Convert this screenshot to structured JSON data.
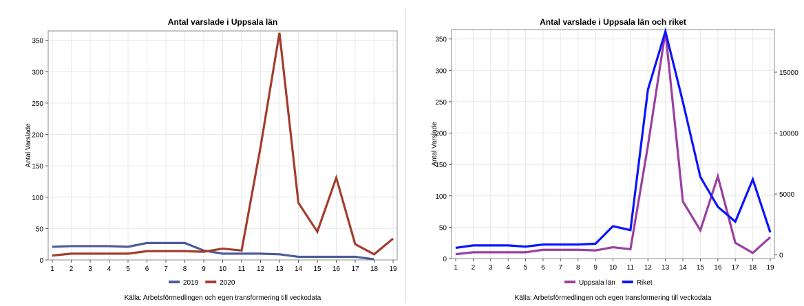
{
  "chart_data": [
    {
      "type": "line",
      "title": "Antal varslade i Uppsala län",
      "ylabel": "Antal Varslade",
      "xlabel": "",
      "x": [
        1,
        2,
        3,
        4,
        5,
        6,
        7,
        8,
        9,
        10,
        11,
        12,
        13,
        14,
        15,
        16,
        17,
        18,
        19
      ],
      "ylim": [
        0,
        365
      ],
      "yticks": [
        0,
        50,
        100,
        150,
        200,
        250,
        300,
        350
      ],
      "grid": true,
      "legend_position": "bottom",
      "series": [
        {
          "name": "2019",
          "color": "#4a5c9a",
          "values": [
            21,
            22,
            22,
            22,
            21,
            27,
            27,
            27,
            15,
            10,
            10,
            10,
            9,
            5,
            5,
            5,
            5,
            1,
            null
          ]
        },
        {
          "name": "2020",
          "color": "#a33d2e",
          "values": [
            7,
            10,
            10,
            10,
            10,
            14,
            14,
            14,
            13,
            18,
            15,
            180,
            362,
            91,
            45,
            131,
            25,
            9,
            34
          ]
        }
      ],
      "source": "Källa: Arbetsförmedlingen och egen transformering till veckodata"
    },
    {
      "type": "line",
      "title": "Antal varslade i Uppsala län och riket",
      "ylabel": "Antal Varslade",
      "xlabel": "",
      "x": [
        1,
        2,
        3,
        4,
        5,
        6,
        7,
        8,
        9,
        10,
        11,
        12,
        13,
        14,
        15,
        16,
        17,
        18,
        19
      ],
      "ylim": [
        0,
        365
      ],
      "yticks": [
        0,
        50,
        100,
        150,
        200,
        250,
        300,
        350
      ],
      "y2lim": [
        -300,
        18500
      ],
      "y2ticks": [
        0,
        5000,
        10000,
        15000
      ],
      "grid": true,
      "legend_position": "bottom",
      "series": [
        {
          "name": "Uppsala län",
          "color": "#9b3fa0",
          "axis": "left",
          "values": [
            7,
            10,
            10,
            10,
            10,
            14,
            14,
            14,
            13,
            18,
            15,
            180,
            362,
            91,
            45,
            131,
            25,
            9,
            34
          ]
        },
        {
          "name": "Riket",
          "color": "#0a14ff",
          "axis": "right",
          "values": [
            580,
            780,
            780,
            780,
            680,
            850,
            850,
            850,
            920,
            2360,
            2030,
            13570,
            18350,
            12560,
            6400,
            3950,
            2730,
            6200,
            1850
          ]
        }
      ],
      "source": "Källa: Arbetsförmedlingen och egen transformering till veckodata"
    }
  ]
}
